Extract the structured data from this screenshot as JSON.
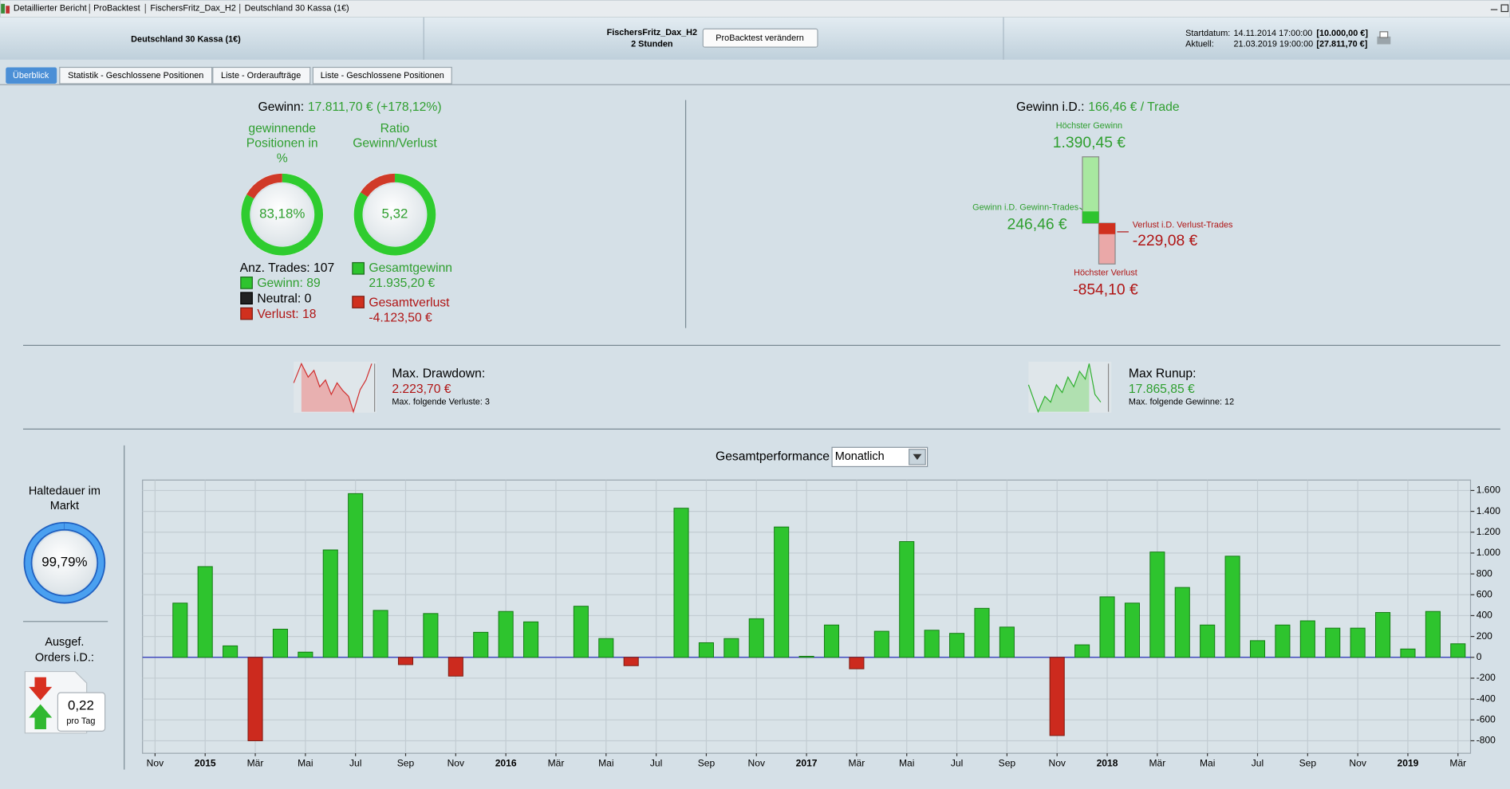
{
  "window": {
    "title_items": [
      "Detaillierter Bericht",
      "ProBacktest",
      "FischersFritz_Dax_H2",
      "Deutschland 30 Kassa (1€)"
    ]
  },
  "header": {
    "instrument": "Deutschland 30 Kassa (1€)",
    "system": "FischersFritz_Dax_H2",
    "timeframe": "2 Stunden",
    "button": "ProBacktest verändern",
    "start_label": "Startdatum:",
    "start_date": "14.11.2014 17:00:00",
    "start_capital": "[10.000,00 €]",
    "current_label": "Aktuell:",
    "current_date": "21.03.2019 19:00:00",
    "current_capital": "[27.811,70 €]"
  },
  "tabs": [
    "Überblick",
    "Statistik - Geschlossene Positionen",
    "Liste - Orderaufträge",
    "Liste - Geschlossene Positionen"
  ],
  "overview": {
    "gain_label": "Gewinn:",
    "gain_value": "17.811,70 € (+178,12%)",
    "donuts": [
      {
        "title_lines": [
          "gewinnende",
          "Positionen in",
          "%"
        ],
        "value": 83.18,
        "label": "83,18%"
      },
      {
        "title_lines": [
          "Ratio",
          "Gewinn/Verlust"
        ],
        "value": 5.32,
        "label": "5,32"
      }
    ],
    "trades": "Anz. Trades: 107",
    "wins": "Gewinn: 89",
    "neutral": "Neutral: 0",
    "losses": "Verlust: 18",
    "gross_gain_label": "Gesamtgewinn",
    "gross_gain": "21.935,20 €",
    "gross_loss_label": "Gesamtverlust",
    "gross_loss": "-4.123,50 €",
    "avg_label": "Gewinn i.D.:",
    "avg_value": "166,46 € / Trade",
    "max_gain_label": "Höchster Gewinn",
    "max_gain": {
      "value": 1390.45,
      "label": "1.390,45 €"
    },
    "avg_win_label": "Gewinn i.D. Gewinn-Trades",
    "avg_win": {
      "value": 246.46,
      "label": "246,46 €"
    },
    "avg_loss_label": "Verlust i.D. Verlust-Trades",
    "avg_loss": {
      "value": -229.08,
      "label": "-229,08 €"
    },
    "max_loss_label": "Höchster Verlust",
    "max_loss": {
      "value": -854.1,
      "label": "-854,10 €"
    },
    "drawdown_label": "Max. Drawdown:",
    "drawdown": "2.223,70 €",
    "drawdown_note": "Max. folgende Verluste: 3",
    "runup_label": "Max Runup:",
    "runup": "17.865,85 €",
    "runup_note": "Max. folgende Gewinne: 12"
  },
  "sidebar": {
    "holding_title_lines": [
      "Haltedauer im",
      "Markt"
    ],
    "holding": {
      "value": 99.79,
      "label": "99,79%"
    },
    "orders_title_lines": [
      "Ausgef.",
      "Orders i.D.:"
    ],
    "orders_value": "0,22",
    "orders_unit": "pro Tag"
  },
  "chart_data": {
    "type": "bar",
    "title": "Gesamtperformance",
    "period": "Monatlich",
    "categories": [
      "Nov",
      null,
      "2015",
      null,
      "Mär",
      null,
      "Mai",
      null,
      "Jul",
      null,
      "Sep",
      null,
      "Nov",
      null,
      "2016",
      null,
      "Mär",
      null,
      "Mai",
      null,
      "Jul",
      null,
      "Sep",
      null,
      "Nov",
      null,
      "2017",
      null,
      "Mär",
      null,
      "Mai",
      null,
      "Jul",
      null,
      "Sep",
      null,
      "Nov",
      null,
      "2018",
      null,
      "Mär",
      null,
      "Mai",
      null,
      "Jul",
      null,
      "Sep",
      null,
      "Nov",
      null,
      "2019",
      null,
      "Mär"
    ],
    "values": [
      null,
      520,
      870,
      110,
      -800,
      270,
      50,
      1030,
      1570,
      450,
      -70,
      420,
      -180,
      240,
      440,
      340,
      null,
      490,
      180,
      -80,
      null,
      1430,
      140,
      180,
      370,
      1250,
      10,
      310,
      -110,
      250,
      1110,
      260,
      230,
      470,
      290,
      null,
      -750,
      120,
      580,
      520,
      1010,
      670,
      310,
      970,
      160,
      310,
      350,
      280,
      280,
      430,
      80,
      440,
      130
    ],
    "colors": {
      "positive": "#2ec42e",
      "negative": "#cc2a1e"
    },
    "ylim": [
      -920,
      1700
    ],
    "yticks": [
      -800,
      -600,
      -400,
      -200,
      0,
      200,
      400,
      600,
      800,
      {
        "value": 1000,
        "label": "1.000"
      },
      {
        "value": 1200,
        "label": "1.200"
      },
      {
        "value": 1400,
        "label": "1.400"
      },
      {
        "value": 1600,
        "label": "1.600"
      }
    ],
    "grid": true
  }
}
